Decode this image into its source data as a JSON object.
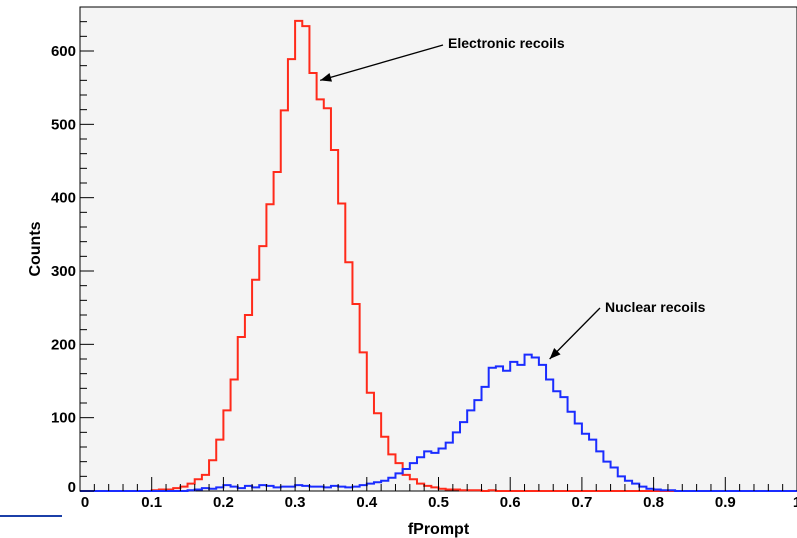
{
  "chart_data": {
    "type": "line",
    "title": "",
    "xlabel": "fPrompt",
    "ylabel": "Counts",
    "xlim": [
      0,
      1
    ],
    "ylim": [
      0,
      660
    ],
    "x_ticks": [
      "0",
      "0.1",
      "0.2",
      "0.3",
      "0.4",
      "0.5",
      "0.6",
      "0.7",
      "0.8",
      "0.9",
      "1"
    ],
    "y_ticks": [
      "0",
      "100",
      "200",
      "300",
      "400",
      "500",
      "600"
    ],
    "bin_width": 0.01,
    "grid": false,
    "series": [
      {
        "name": "Electronic recoils",
        "color": "#ff2a1a",
        "bin_lo": [
          0.1,
          0.11,
          0.12,
          0.13,
          0.14,
          0.15,
          0.16,
          0.17,
          0.18,
          0.19,
          0.2,
          0.21,
          0.22,
          0.23,
          0.24,
          0.25,
          0.26,
          0.27,
          0.28,
          0.29,
          0.3,
          0.31,
          0.32,
          0.33,
          0.34,
          0.35,
          0.36,
          0.37,
          0.38,
          0.39,
          0.4,
          0.41,
          0.42,
          0.43,
          0.44,
          0.45,
          0.46,
          0.47,
          0.48,
          0.49,
          0.5,
          0.51,
          0.52,
          0.53,
          0.54,
          0.55,
          0.56,
          0.57,
          0.58,
          0.59,
          0.6
        ],
        "values": [
          1,
          2,
          2,
          4,
          6,
          10,
          16,
          22,
          42,
          70,
          110,
          152,
          210,
          240,
          288,
          334,
          391,
          435,
          519,
          589,
          641,
          634,
          570,
          534,
          522,
          465,
          392,
          312,
          255,
          189,
          134,
          106,
          74,
          50,
          38,
          22,
          16,
          10,
          7,
          5,
          3,
          2,
          2,
          1,
          1,
          1,
          0,
          1,
          0,
          0,
          0
        ]
      },
      {
        "name": "Nuclear recoils",
        "color": "#1a2cff",
        "bin_lo": [
          0.15,
          0.16,
          0.17,
          0.18,
          0.19,
          0.2,
          0.21,
          0.22,
          0.23,
          0.24,
          0.25,
          0.26,
          0.27,
          0.28,
          0.29,
          0.3,
          0.31,
          0.32,
          0.33,
          0.34,
          0.35,
          0.36,
          0.37,
          0.38,
          0.39,
          0.4,
          0.41,
          0.42,
          0.43,
          0.44,
          0.45,
          0.46,
          0.47,
          0.48,
          0.49,
          0.5,
          0.51,
          0.52,
          0.53,
          0.54,
          0.55,
          0.56,
          0.57,
          0.58,
          0.59,
          0.6,
          0.61,
          0.62,
          0.63,
          0.64,
          0.65,
          0.66,
          0.67,
          0.68,
          0.69,
          0.7,
          0.71,
          0.72,
          0.73,
          0.74,
          0.75,
          0.76,
          0.77,
          0.78,
          0.79,
          0.8,
          0.81,
          0.82,
          0.83
        ],
        "values": [
          1,
          2,
          4,
          3,
          5,
          8,
          6,
          4,
          7,
          5,
          8,
          7,
          5,
          6,
          6,
          8,
          7,
          6,
          6,
          5,
          7,
          6,
          5,
          6,
          8,
          10,
          12,
          14,
          18,
          24,
          30,
          38,
          46,
          54,
          52,
          58,
          66,
          80,
          94,
          110,
          124,
          142,
          168,
          170,
          164,
          176,
          172,
          186,
          182,
          172,
          152,
          136,
          128,
          108,
          92,
          78,
          70,
          54,
          40,
          32,
          20,
          14,
          10,
          6,
          3,
          2,
          1,
          1,
          0
        ]
      }
    ],
    "annotations": [
      {
        "text": "Electronic recoils",
        "target_x": 0.335,
        "target_y": 560
      },
      {
        "text": "Nuclear recoils",
        "target_x": 0.655,
        "target_y": 180
      }
    ]
  }
}
